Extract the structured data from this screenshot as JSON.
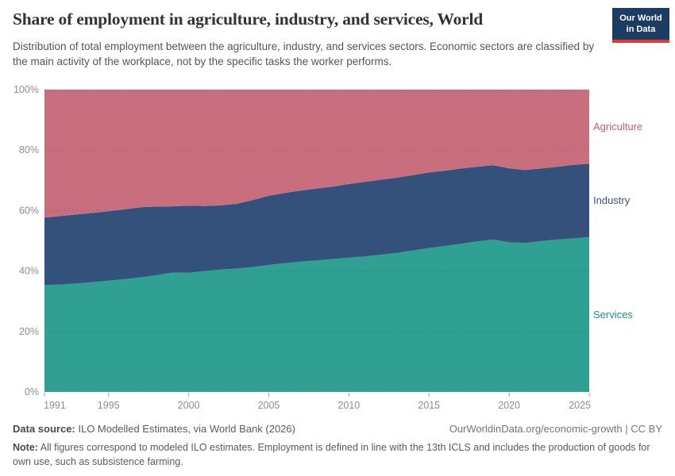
{
  "header": {
    "title": "Share of employment in agriculture, industry, and services, World",
    "subtitle": "Distribution of total employment between the agriculture, industry, and services sectors. Economic sectors are classified by the main activity of the workplace, not by the specific tasks the worker performs.",
    "logo": {
      "line1": "Our World",
      "line2": "in Data",
      "bg_color": "#1c3d63",
      "bar_color": "#dc3a33"
    }
  },
  "chart_data": {
    "type": "area",
    "stacked": true,
    "title": "Share of employment in agriculture, industry, and services, World",
    "xlabel": "",
    "ylabel": "",
    "unit": "%",
    "ylim": [
      0,
      100
    ],
    "grid": true,
    "legend_position": "right",
    "x": [
      1991,
      1992,
      1993,
      1994,
      1995,
      1996,
      1997,
      1998,
      1999,
      2000,
      2001,
      2002,
      2003,
      2004,
      2005,
      2006,
      2007,
      2008,
      2009,
      2010,
      2011,
      2012,
      2013,
      2014,
      2015,
      2016,
      2017,
      2018,
      2019,
      2020,
      2021,
      2022,
      2023,
      2024,
      2025
    ],
    "x_ticks": [
      1991,
      1995,
      2000,
      2005,
      2010,
      2015,
      2020,
      2025
    ],
    "y_ticks": [
      {
        "value": 0,
        "label": "0%"
      },
      {
        "value": 20,
        "label": "20%"
      },
      {
        "value": 40,
        "label": "40%"
      },
      {
        "value": 60,
        "label": "60%"
      },
      {
        "value": 80,
        "label": "80%"
      },
      {
        "value": 100,
        "label": "100%"
      }
    ],
    "series": [
      {
        "name": "Services",
        "color": "#2fa092",
        "label_color": "#249187",
        "values": [
          35.4,
          35.5,
          35.9,
          36.3,
          36.8,
          37.3,
          37.9,
          38.6,
          39.5,
          39.4,
          40.0,
          40.5,
          40.8,
          41.3,
          42.0,
          42.6,
          43.1,
          43.5,
          44.0,
          44.4,
          44.8,
          45.4,
          46.0,
          46.8,
          47.6,
          48.3,
          49.0,
          49.8,
          50.4,
          49.5,
          49.3,
          49.9,
          50.4,
          50.8,
          51.2
        ]
      },
      {
        "name": "Industry",
        "color": "#34517b",
        "label_color": "#3a5578",
        "values": [
          22.3,
          22.7,
          22.8,
          22.9,
          23.0,
          23.1,
          23.2,
          22.7,
          21.9,
          22.2,
          21.5,
          21.2,
          21.4,
          22.2,
          22.9,
          23.2,
          23.5,
          23.8,
          23.9,
          24.4,
          24.7,
          24.8,
          24.9,
          24.9,
          25.0,
          24.9,
          24.9,
          24.7,
          24.6,
          24.5,
          24.1,
          24.0,
          24.1,
          24.3,
          24.3
        ]
      },
      {
        "name": "Agriculture",
        "color": "#c96e7f",
        "label_color": "#c35f72",
        "values": [
          42.3,
          41.8,
          41.3,
          40.8,
          40.2,
          39.6,
          38.9,
          38.7,
          38.6,
          38.4,
          38.5,
          38.3,
          37.8,
          36.5,
          35.1,
          34.2,
          33.4,
          32.7,
          32.1,
          31.2,
          30.5,
          29.8,
          29.1,
          28.3,
          27.4,
          26.8,
          26.1,
          25.5,
          25.0,
          26.0,
          26.6,
          26.1,
          25.5,
          24.9,
          24.5
        ]
      }
    ]
  },
  "footer": {
    "datasource_label": "Data source:",
    "datasource": " ILO Modelled Estimates, via World Bank (2026)",
    "link": "OurWorldinData.org/economic-growth | CC BY",
    "note_label": "Note:",
    "note": " All figures correspond to modeled ILO estimates. Employment is defined in line with the 13th ICLS and includes the production of goods for own use, such as subsistence farming."
  }
}
